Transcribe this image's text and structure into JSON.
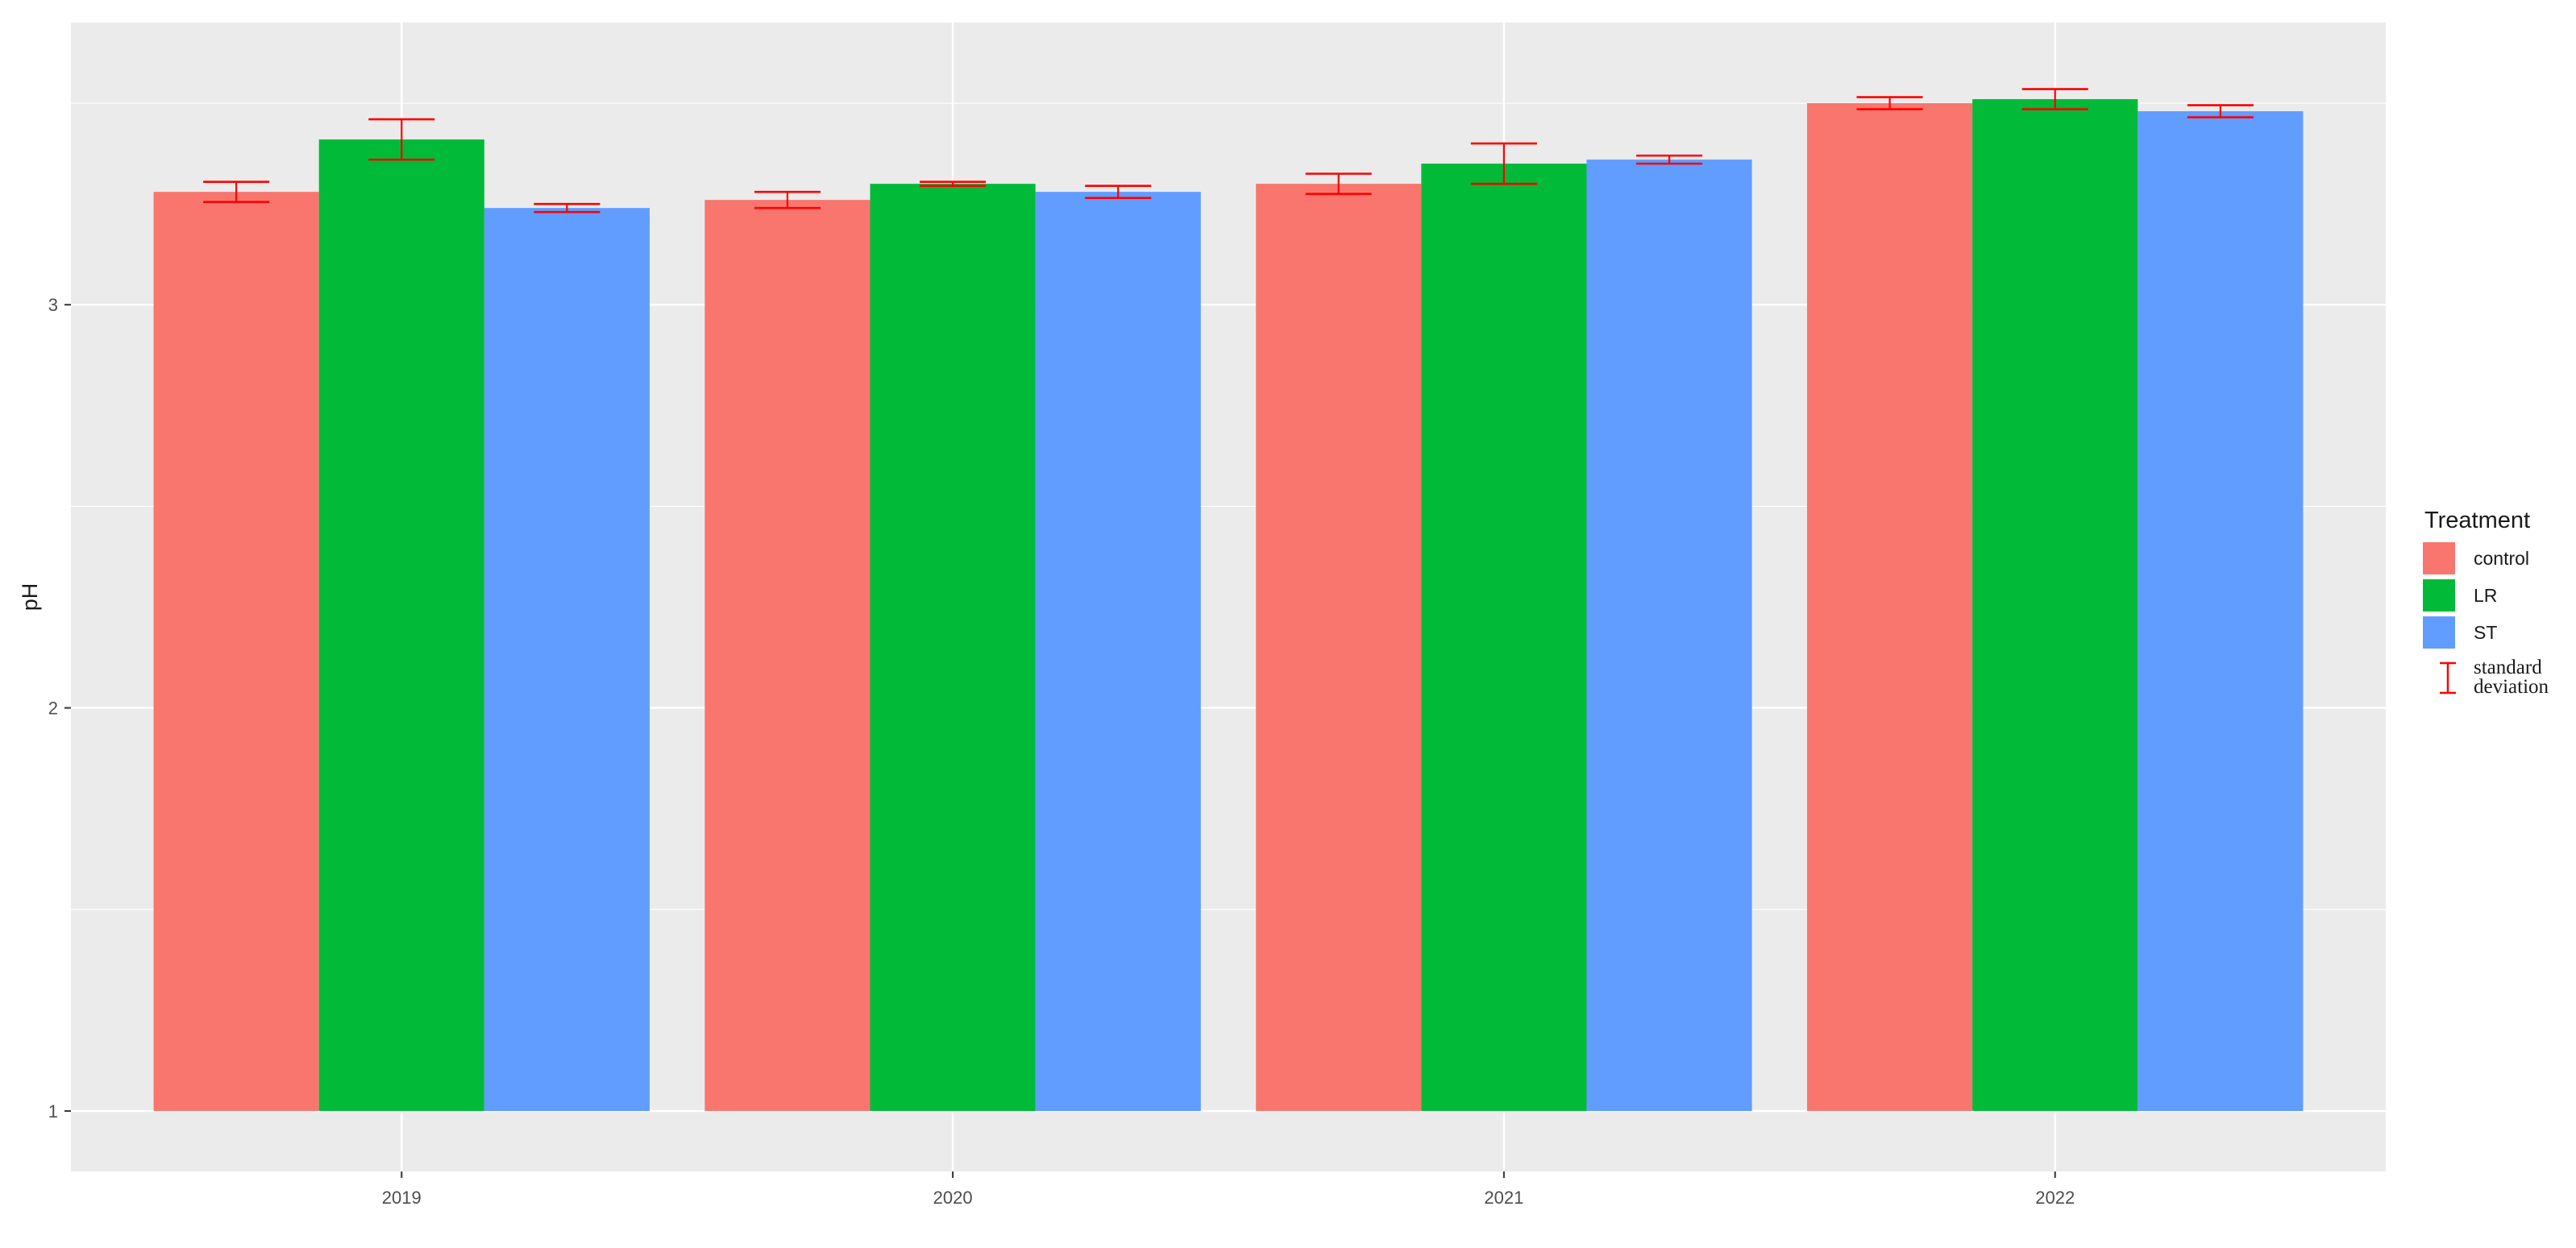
{
  "chart_data": {
    "type": "bar",
    "categories": [
      "2019",
      "2020",
      "2021",
      "2022"
    ],
    "series": [
      {
        "name": "control",
        "color": "#F8766D",
        "values": [
          3.28,
          3.26,
          3.3,
          3.5
        ],
        "sd": [
          0.025,
          0.02,
          0.025,
          0.015
        ]
      },
      {
        "name": "LR",
        "color": "#00BA38",
        "values": [
          3.41,
          3.3,
          3.35,
          3.51
        ],
        "sd": [
          0.05,
          0.005,
          0.05,
          0.025
        ]
      },
      {
        "name": "ST",
        "color": "#619CFF",
        "values": [
          3.24,
          3.28,
          3.36,
          3.48
        ],
        "sd": [
          0.01,
          0.015,
          0.01,
          0.015
        ]
      }
    ],
    "ylabel": "pH",
    "xlabel": "",
    "ylim": [
      0.85,
      3.7
    ],
    "yticks": [
      1,
      2,
      3
    ],
    "bar_base": 1,
    "grid": true,
    "legend": {
      "title": "Treatment",
      "placement": "right",
      "sd_label_line1": "standard",
      "sd_label_line2": "deviation",
      "sd_color": "#FF0000"
    }
  }
}
